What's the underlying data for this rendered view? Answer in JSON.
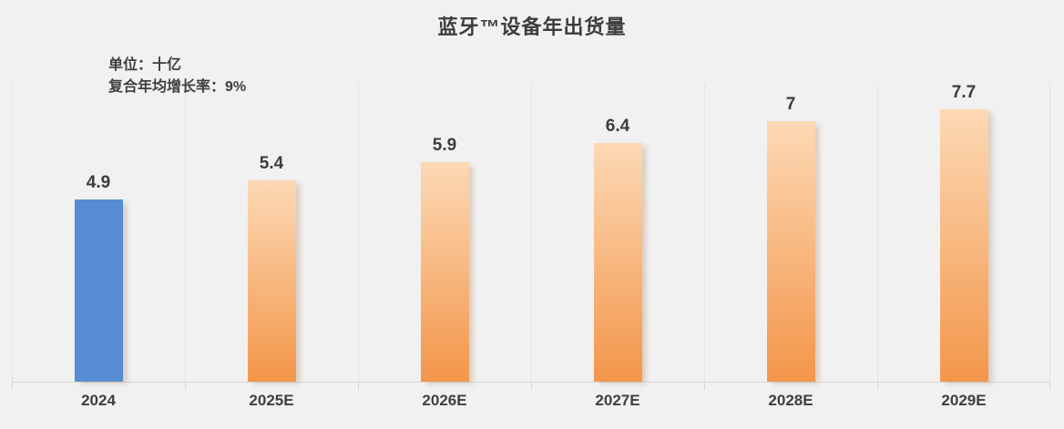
{
  "chart_data": {
    "type": "bar",
    "title": "蓝牙™设备年出货量",
    "unit_note": "单位：十亿",
    "cagr_note": "复合年均增长率：9%",
    "categories": [
      "2024",
      "2025E",
      "2026E",
      "2027E",
      "2028E",
      "2029E"
    ],
    "values": [
      4.9,
      5.4,
      5.9,
      6.4,
      7,
      7.7
    ],
    "ylim": [
      0,
      8
    ],
    "grid": "vertical-only",
    "legend": "none",
    "highlight_index": 0,
    "colors": {
      "highlight_bar": "#568CD1",
      "bar_gradient_top": "#FCD9B5",
      "bar_gradient_bottom": "#F3964A",
      "text": "#3F3F3F",
      "gridline": "#E4E4E4",
      "axis_line": "#D6D6D6",
      "background": "#F1F1F2"
    }
  }
}
